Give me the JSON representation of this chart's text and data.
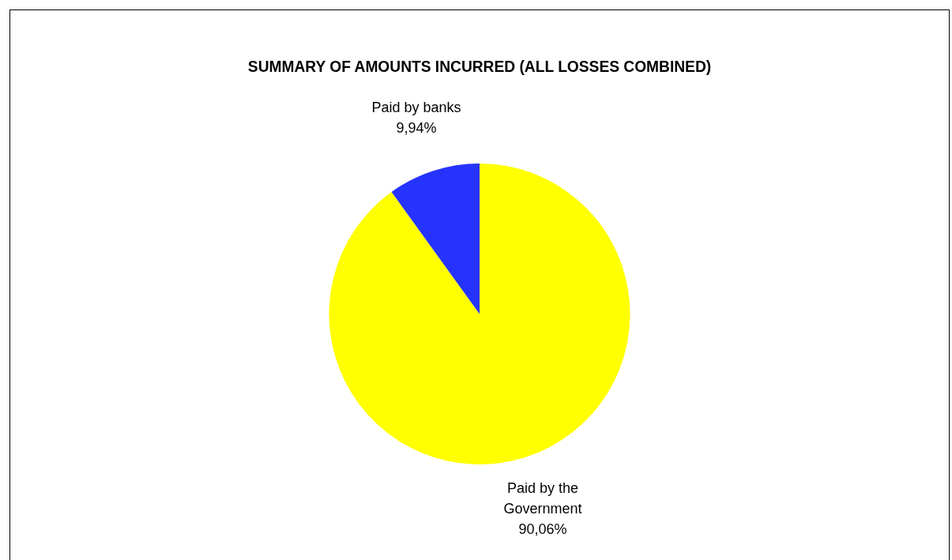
{
  "chart_data": {
    "type": "pie",
    "title": "SUMMARY OF AMOUNTS INCURRED (ALL LOSSES COMBINED)",
    "categories": [
      "Paid by the Government",
      "Paid by banks"
    ],
    "values": [
      90.06,
      9.94
    ],
    "colors": [
      "#ffff00",
      "#2633ff"
    ],
    "value_labels": [
      "90,06%",
      "9,94%"
    ],
    "legend": false
  }
}
